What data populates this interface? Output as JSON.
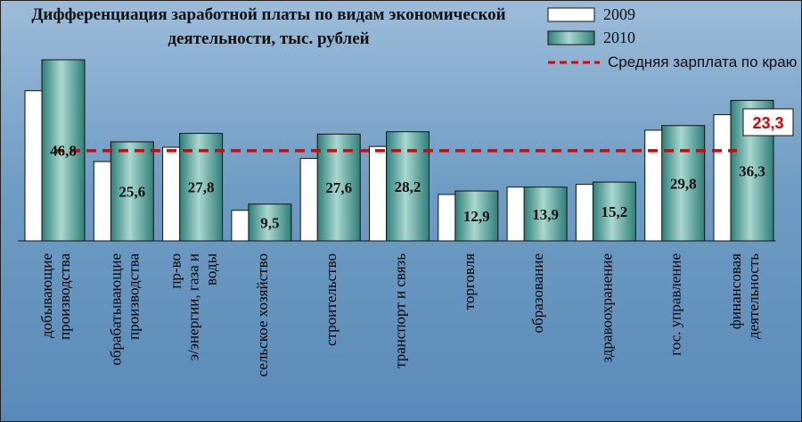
{
  "chart_data": {
    "type": "bar",
    "title": "Дифференциация заработной платы по видам экономической деятельности, тыс. рублей",
    "title_lines": [
      "Дифференциация заработной платы по видам экономической",
      "деятельности, тыс. рублей"
    ],
    "categories": [
      [
        "добывающие",
        "производства"
      ],
      [
        "обрабатывающие",
        "производства"
      ],
      [
        "пр-во",
        "э/энергии, газа и",
        "воды"
      ],
      [
        "сельское хозяйство"
      ],
      [
        "строительство"
      ],
      [
        "транспорт и связь"
      ],
      [
        "торговля"
      ],
      [
        "образование"
      ],
      [
        "здравоохранение"
      ],
      [
        "гос. управление"
      ],
      [
        "финансовая",
        "деятельность"
      ]
    ],
    "series": [
      {
        "name": "2009",
        "values": [
          38.8,
          20.5,
          24.2,
          7.9,
          21.3,
          24.4,
          12.0,
          13.9,
          14.6,
          28.6,
          32.6
        ],
        "color": "#ffffff"
      },
      {
        "name": "2010",
        "values": [
          46.8,
          25.6,
          27.8,
          9.5,
          27.6,
          28.2,
          12.9,
          13.9,
          15.2,
          29.8,
          36.3
        ],
        "color": "#3f8f86"
      }
    ],
    "value_labels": [
      "46,8",
      "25,6",
      "27,8",
      "9,5",
      "27,6",
      "28,2",
      "12,9",
      "13,9",
      "15,2",
      "29,8",
      "36,3"
    ],
    "average": {
      "name": "Средняя зарплата по краю",
      "value": 23.3,
      "label": "23,3",
      "color": "#e00000"
    },
    "ylim": [
      0,
      50
    ],
    "grid": false,
    "legend_position": "top-right"
  }
}
